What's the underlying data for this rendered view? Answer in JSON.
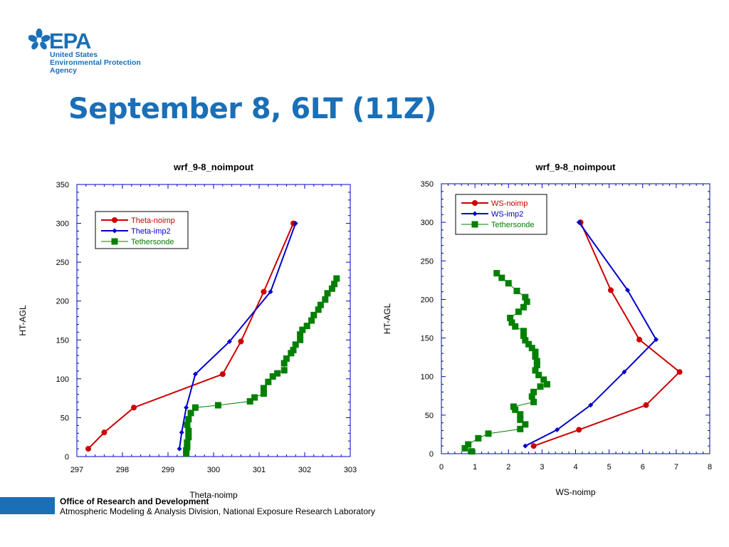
{
  "logo": {
    "brand": "EPA",
    "line1": "United States",
    "line2": "Environmental Protection",
    "line3": "Agency"
  },
  "title": "September 8, 6LT (11Z)",
  "colors": {
    "title": "#1a6fb6",
    "noimp": "#cc0000",
    "imp2": "#0000cc",
    "tether": "#008000",
    "footer_bar": "#1a6fb6",
    "frame": "#0000cc"
  },
  "footer": {
    "org": "Office of Research and Development",
    "division": "Atmospheric Modeling & Analysis Division, National Exposure Research Laboratory"
  },
  "chart_data": [
    {
      "type": "line",
      "title": "wrf_9-8_noimpout",
      "xlabel": "Theta-noimp",
      "ylabel": "HT-AGL",
      "xlim": [
        297,
        303
      ],
      "ylim": [
        0,
        350
      ],
      "xticks": [
        297,
        298,
        299,
        300,
        301,
        302,
        303
      ],
      "yticks": [
        0,
        50,
        100,
        150,
        200,
        250,
        300,
        350
      ],
      "legend_position": "top-left",
      "series": [
        {
          "name": "Theta-noimp",
          "color": "#cc0000",
          "marker": "circle",
          "x": [
            297.25,
            297.6,
            298.25,
            300.2,
            300.6,
            301.1,
            301.75
          ],
          "y": [
            10,
            31,
            63,
            106,
            148,
            212,
            300
          ]
        },
        {
          "name": "Theta-imp2",
          "color": "#0000cc",
          "marker": "diamond",
          "x": [
            299.25,
            299.3,
            299.4,
            299.6,
            300.35,
            301.25,
            301.8
          ],
          "y": [
            10,
            31,
            63,
            106,
            148,
            212,
            300
          ]
        },
        {
          "name": "Tethersonde",
          "color": "#008000",
          "marker": "square",
          "x": [
            299.4,
            299.4,
            299.42,
            299.42,
            299.45,
            299.45,
            299.42,
            299.45,
            299.5,
            299.6,
            300.1,
            300.8,
            300.9,
            301.1,
            301.1,
            301.2,
            301.3,
            301.4,
            301.55,
            301.55,
            301.6,
            301.7,
            301.75,
            301.8,
            301.9,
            301.9,
            301.95,
            302.05,
            302.15,
            302.2,
            302.3,
            302.35,
            302.45,
            302.5,
            302.6,
            302.65,
            302.7
          ],
          "y": [
            4,
            8,
            12,
            18,
            25,
            33,
            41,
            48,
            56,
            63,
            66,
            71,
            76,
            81,
            88,
            96,
            103,
            107,
            111,
            120,
            126,
            133,
            137,
            144,
            150,
            157,
            163,
            168,
            175,
            182,
            189,
            195,
            202,
            210,
            216,
            222,
            229
          ]
        }
      ]
    },
    {
      "type": "line",
      "title": "wrf_9-8_noimpout",
      "xlabel": "WS-noimp",
      "ylabel": "HT-AGL",
      "xlim": [
        0,
        8
      ],
      "ylim": [
        0,
        350
      ],
      "xticks": [
        0,
        1,
        2,
        3,
        4,
        5,
        6,
        7,
        8
      ],
      "yticks": [
        0,
        50,
        100,
        150,
        200,
        250,
        300,
        350
      ],
      "legend_position": "top-left",
      "series": [
        {
          "name": "WS-noimp",
          "color": "#cc0000",
          "marker": "circle",
          "x": [
            2.75,
            4.1,
            6.1,
            7.1,
            5.9,
            5.05,
            4.15
          ],
          "y": [
            10,
            31,
            63,
            106,
            148,
            212,
            300
          ]
        },
        {
          "name": "WS-imp2",
          "color": "#0000cc",
          "marker": "diamond",
          "x": [
            2.5,
            3.45,
            4.45,
            5.45,
            6.4,
            5.55,
            4.1
          ],
          "y": [
            10,
            31,
            63,
            106,
            148,
            212,
            300
          ]
        },
        {
          "name": "Tethersonde",
          "color": "#008000",
          "marker": "square",
          "x": [
            0.9,
            0.7,
            0.8,
            1.1,
            1.4,
            2.35,
            2.5,
            2.35,
            2.35,
            2.2,
            2.15,
            2.75,
            2.7,
            2.75,
            2.95,
            3.15,
            3.05,
            2.9,
            2.8,
            2.85,
            2.85,
            2.8,
            2.8,
            2.7,
            2.6,
            2.5,
            2.45,
            2.45,
            2.2,
            2.1,
            2.05,
            2.3,
            2.45,
            2.55,
            2.5,
            2.25,
            2.0,
            1.8,
            1.65
          ],
          "y": [
            3,
            7,
            12,
            20,
            26,
            32,
            38,
            44,
            51,
            57,
            61,
            67,
            74,
            80,
            87,
            90,
            96,
            102,
            108,
            115,
            120,
            126,
            132,
            137,
            142,
            147,
            153,
            159,
            165,
            170,
            176,
            184,
            190,
            197,
            203,
            211,
            221,
            228,
            234
          ]
        }
      ]
    }
  ]
}
